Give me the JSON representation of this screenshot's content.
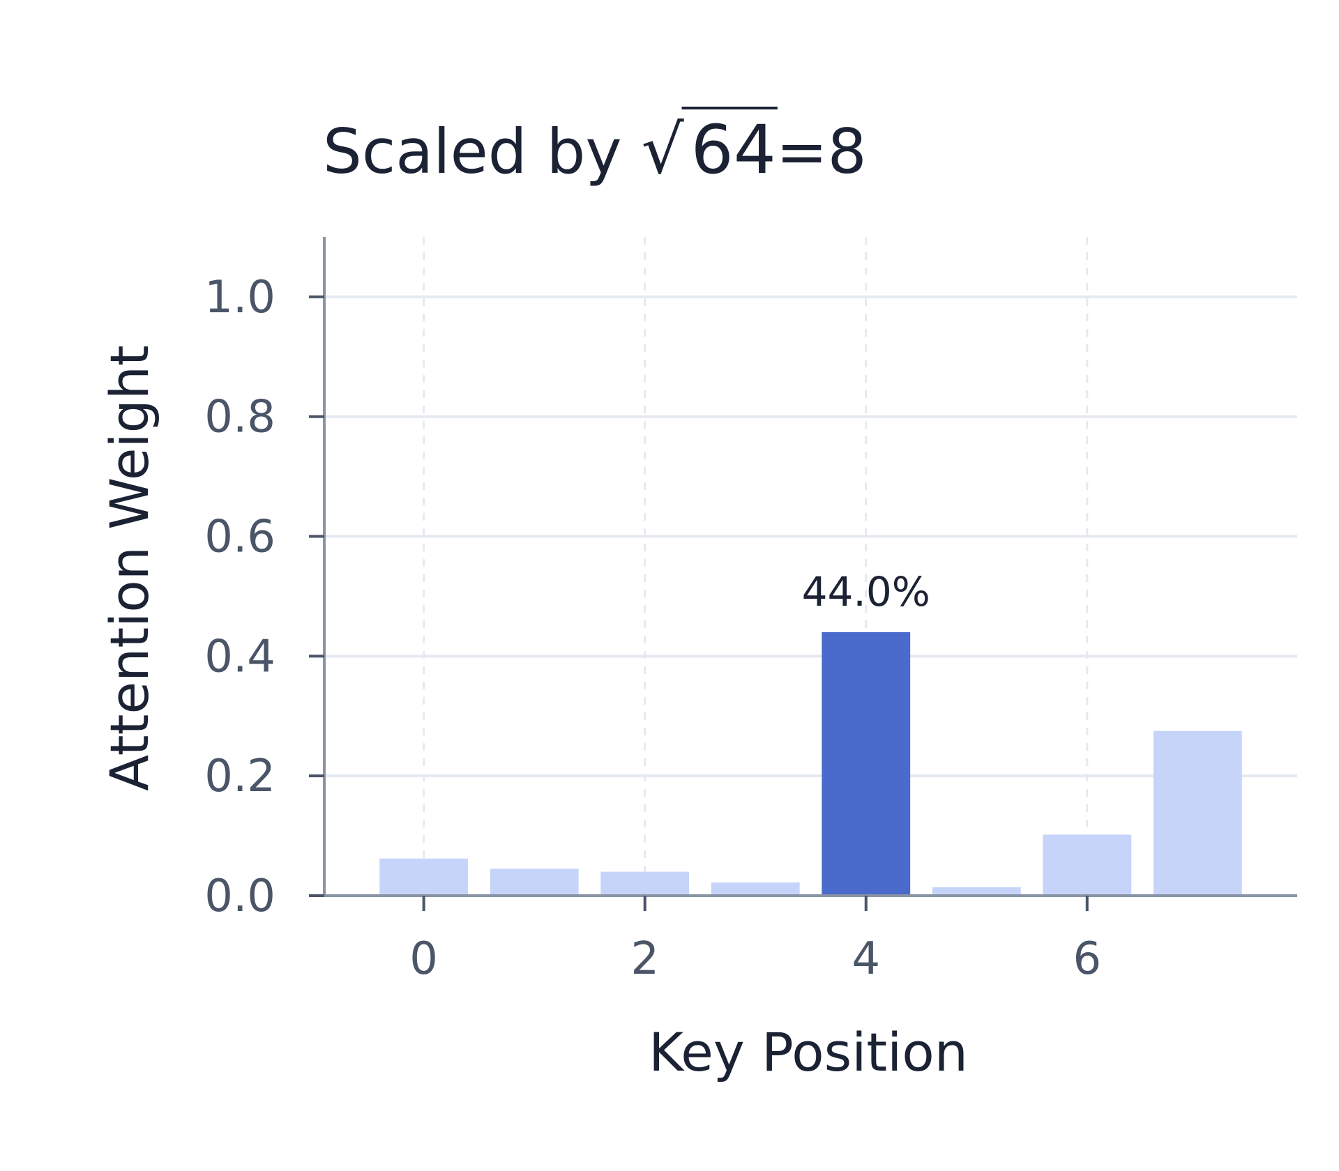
{
  "chart_data": {
    "type": "bar",
    "title": {
      "prefix": "Scaled by ",
      "radical": "√",
      "radicand": "64",
      "suffix": "=8"
    },
    "xlabel": "Key Position",
    "ylabel": "Attention Weight",
    "categories": [
      0,
      1,
      2,
      3,
      4,
      5,
      6,
      7
    ],
    "values": [
      0.062,
      0.045,
      0.04,
      0.022,
      0.44,
      0.014,
      0.102,
      0.275
    ],
    "xlim": [
      -0.9,
      7.9
    ],
    "ylim": [
      0,
      1.1
    ],
    "xticks": [
      "0",
      "2",
      "4",
      "6"
    ],
    "xtick_values": [
      0,
      2,
      4,
      6
    ],
    "yticks": [
      "0.0",
      "0.2",
      "0.4",
      "0.6",
      "0.8",
      "1.0"
    ],
    "ytick_values": [
      0,
      0.2,
      0.4,
      0.6,
      0.8,
      1.0
    ],
    "grid": true,
    "highlight_index": 4,
    "annotations": [
      {
        "category": 4,
        "text": "44.0%"
      }
    ],
    "colors": {
      "bar": "#c6d4fa",
      "highlight": "#4a6bcc",
      "axis": "#8a94a6",
      "grid": "#e5e9f0"
    }
  }
}
